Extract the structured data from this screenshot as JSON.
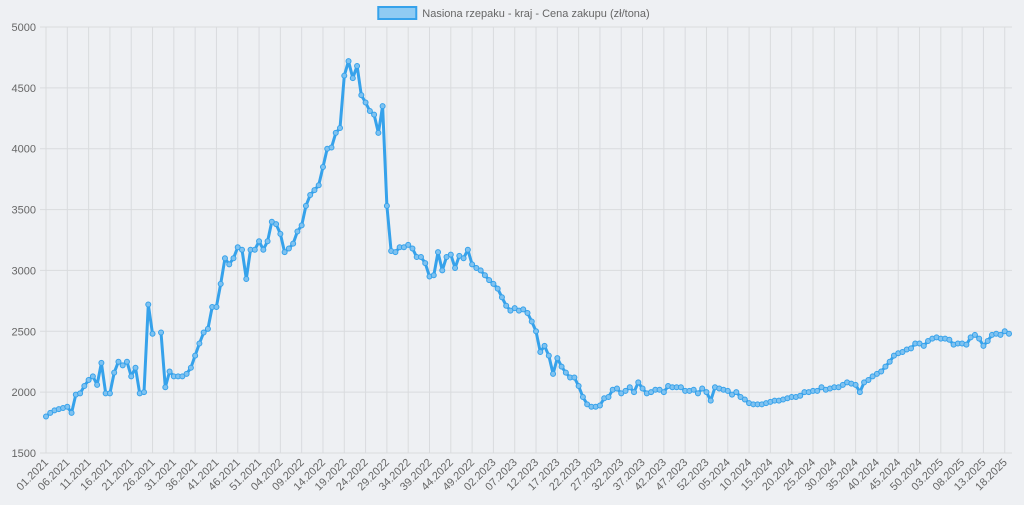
{
  "chart_data": {
    "type": "line",
    "series": [
      {
        "name": "Nasiona rzepaku - kraj - Cena zakupu (zł/tona)",
        "color": "#36a2eb",
        "values": [
          1800,
          1830,
          1850,
          1860,
          1870,
          1880,
          1830,
          1980,
          1990,
          2050,
          2100,
          2130,
          2060,
          2240,
          1990,
          1990,
          2160,
          2250,
          2220,
          2250,
          2130,
          2200,
          1990,
          2000,
          2720,
          2480,
          null,
          2490,
          2040,
          2170,
          2130,
          2130,
          2130,
          2150,
          2200,
          2300,
          2400,
          2490,
          2520,
          2700,
          2700,
          2890,
          3100,
          3050,
          3100,
          3190,
          3170,
          2930,
          3170,
          3170,
          3240,
          3170,
          3240,
          3400,
          3380,
          3300,
          3150,
          3180,
          3220,
          3320,
          3370,
          3530,
          3620,
          3660,
          3700,
          3850,
          4000,
          4010,
          4130,
          4170,
          4600,
          4720,
          4580,
          4680,
          4440,
          4380,
          4310,
          4280,
          4130,
          4350,
          3530,
          3160,
          3150,
          3190,
          3190,
          3210,
          3180,
          3110,
          3110,
          3060,
          2950,
          2960,
          3150,
          3000,
          3110,
          3130,
          3020,
          3120,
          3100,
          3170,
          3050,
          3020,
          3000,
          2960,
          2920,
          2890,
          2850,
          2780,
          2710,
          2670,
          2690,
          2670,
          2680,
          2650,
          2580,
          2500,
          2330,
          2380,
          2300,
          2150,
          2280,
          2210,
          2160,
          2120,
          2120,
          2050,
          1960,
          1900,
          1880,
          1880,
          1890,
          1950,
          1960,
          2020,
          2030,
          1990,
          2010,
          2040,
          2000,
          2080,
          2030,
          1990,
          2000,
          2020,
          2020,
          2000,
          2050,
          2040,
          2040,
          2040,
          2010,
          2010,
          2020,
          1990,
          2030,
          2000,
          1930,
          2040,
          2030,
          2020,
          2010,
          1980,
          2000,
          1960,
          1940,
          1910,
          1900,
          1900,
          1900,
          1910,
          1920,
          1930,
          1930,
          1940,
          1950,
          1960,
          1960,
          1970,
          2000,
          2000,
          2010,
          2010,
          2040,
          2020,
          2030,
          2040,
          2040,
          2060,
          2080,
          2070,
          2060,
          2000,
          2080,
          2100,
          2130,
          2150,
          2170,
          2210,
          2250,
          2300,
          2320,
          2330,
          2350,
          2360,
          2400,
          2400,
          2380,
          2420,
          2440,
          2450,
          2440,
          2440,
          2430,
          2390,
          2400,
          2400,
          2390,
          2450,
          2470,
          2440,
          2380,
          2420,
          2470,
          2480,
          2470,
          2500,
          2480
        ]
      }
    ],
    "categories": [
      "01.2021",
      null,
      null,
      null,
      null,
      "06.2021",
      null,
      null,
      null,
      null,
      "11.2021",
      null,
      null,
      null,
      null,
      "16.2021",
      null,
      null,
      null,
      null,
      "21.2021",
      null,
      null,
      null,
      null,
      "26.2021",
      null,
      null,
      null,
      null,
      "31.2021",
      null,
      null,
      null,
      null,
      "36.2021",
      null,
      null,
      null,
      null,
      "41.2021",
      null,
      null,
      null,
      null,
      "46.2021",
      null,
      null,
      null,
      null,
      "51.2021",
      null,
      null,
      null,
      null,
      "04.2022",
      null,
      null,
      null,
      null,
      "09.2022",
      null,
      null,
      null,
      null,
      "14.2022",
      null,
      null,
      null,
      null,
      "19.2022",
      null,
      null,
      null,
      null,
      "24.2022",
      null,
      null,
      null,
      null,
      "29.2022",
      null,
      null,
      null,
      null,
      "34.2022",
      null,
      null,
      null,
      null,
      "39.2022",
      null,
      null,
      null,
      null,
      "44.2022",
      null,
      null,
      null,
      null,
      "49.2022",
      null,
      null,
      null,
      null,
      "02.2023",
      null,
      null,
      null,
      null,
      "07.2023",
      null,
      null,
      null,
      null,
      "12.2023",
      null,
      null,
      null,
      null,
      "17.2023",
      null,
      null,
      null,
      null,
      "22.2023",
      null,
      null,
      null,
      null,
      "27.2023",
      null,
      null,
      null,
      null,
      "32.2023",
      null,
      null,
      null,
      null,
      "37.2023",
      null,
      null,
      null,
      null,
      "42.2023",
      null,
      null,
      null,
      null,
      "47.2023",
      null,
      null,
      null,
      null,
      "52.2023",
      null,
      null,
      null,
      null,
      "05.2024",
      null,
      null,
      null,
      null,
      "10.2024",
      null,
      null,
      null,
      null,
      "15.2024",
      null,
      null,
      null,
      null,
      "20.2024",
      null,
      null,
      null,
      null,
      "25.2024",
      null,
      null,
      null,
      null,
      "30.2024",
      null,
      null,
      null,
      null,
      "35.2024",
      null,
      null,
      null,
      null,
      "40.2024",
      null,
      null,
      null,
      null,
      "45.2024",
      null,
      null,
      null,
      null,
      "50.2024",
      null,
      null,
      null,
      null,
      "03.2025",
      null,
      null,
      null,
      null,
      "08.2025",
      null,
      null,
      null,
      null,
      "13.2025",
      null,
      null,
      null,
      null,
      "18.2025",
      null
    ],
    "ylim": [
      1500,
      5000
    ],
    "yticks": [
      1500,
      2000,
      2500,
      3000,
      3500,
      4000,
      4500,
      5000
    ],
    "grid": true,
    "legend": "top"
  }
}
